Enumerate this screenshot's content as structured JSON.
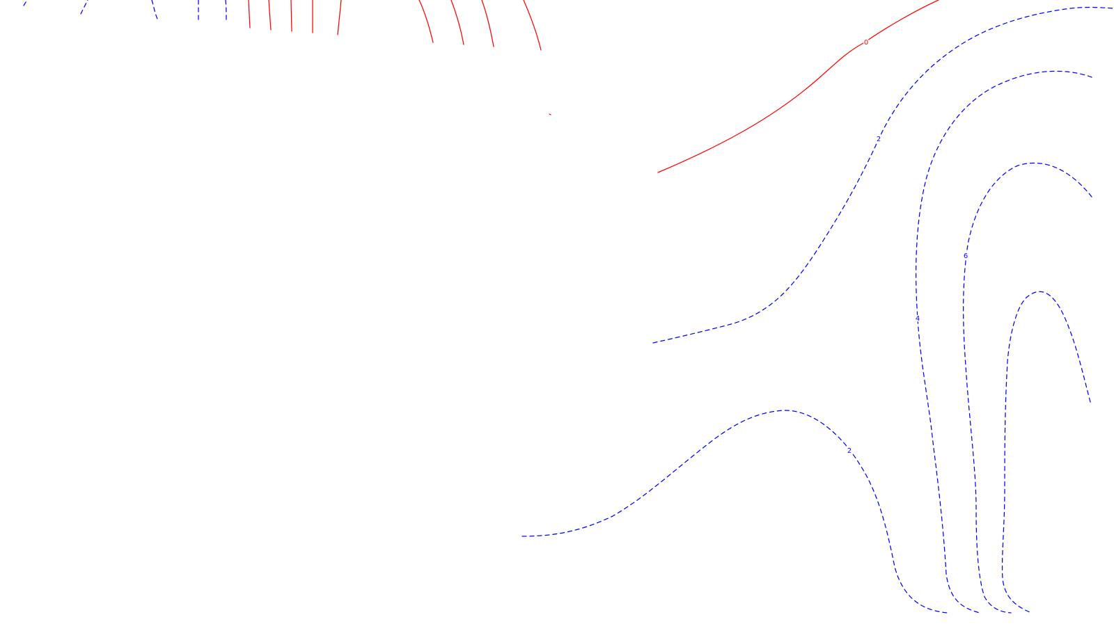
{
  "map": {
    "colors": {
      "background": "#ffffff",
      "negative_and_zero_contours": "#ff0000",
      "positive_contours": "#0000ff"
    },
    "contour_labels": [
      {
        "text": "0",
        "level": 0,
        "color": "#ff0000"
      },
      {
        "text": "2",
        "level": 2,
        "color": "#0000ff"
      },
      {
        "text": "2",
        "level": 2,
        "color": "#0000ff"
      },
      {
        "text": "4",
        "level": 4,
        "color": "#0000ff"
      },
      {
        "text": "6",
        "level": 6,
        "color": "#0000ff"
      }
    ]
  }
}
